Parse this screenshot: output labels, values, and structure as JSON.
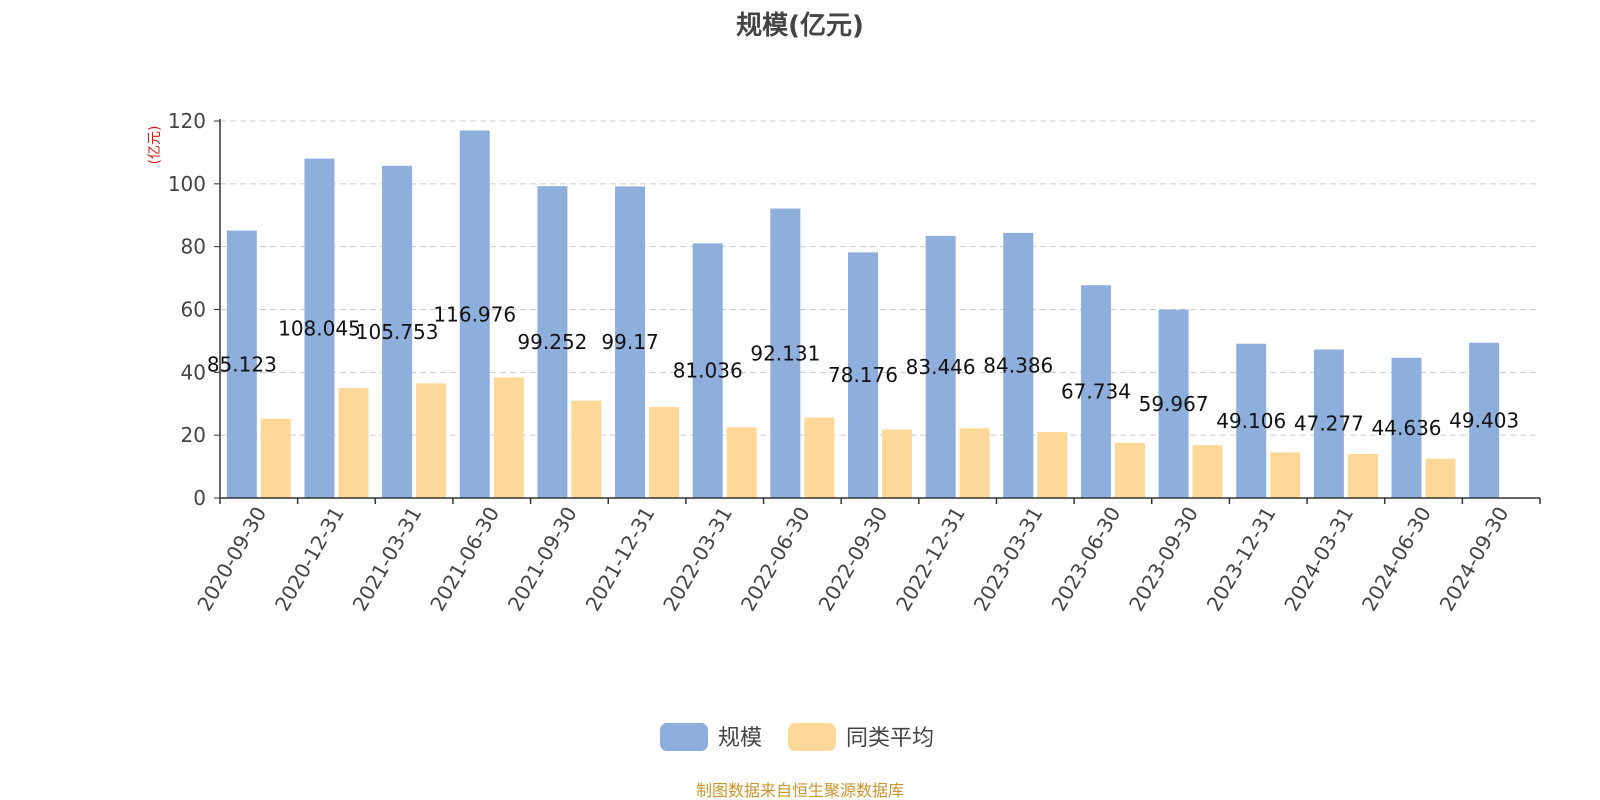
{
  "chart_data": {
    "type": "bar",
    "title": "规模(亿元)",
    "ylabel": "(亿元)",
    "ylim": [
      0,
      120
    ],
    "yticks": [
      0,
      20,
      40,
      60,
      80,
      100,
      120
    ],
    "grid": true,
    "legend_position": "bottom",
    "categories": [
      "2020-09-30",
      "2020-12-31",
      "2021-03-31",
      "2021-06-30",
      "2021-09-30",
      "2021-12-31",
      "2022-03-31",
      "2022-06-30",
      "2022-09-30",
      "2022-12-31",
      "2023-03-31",
      "2023-06-30",
      "2023-09-30",
      "2023-12-31",
      "2024-03-31",
      "2024-06-30",
      "2024-09-30"
    ],
    "series": [
      {
        "name": "规模",
        "color": "#8eaedc",
        "values": [
          85.123,
          108.045,
          105.753,
          116.976,
          99.252,
          99.17,
          81.036,
          92.131,
          78.176,
          83.446,
          84.386,
          67.734,
          59.967,
          49.106,
          47.277,
          44.636,
          49.403
        ],
        "labels": [
          "85.123",
          "108.045",
          "105.753",
          "116.976",
          "99.252",
          "99.17",
          "81.036",
          "92.131",
          "78.176",
          "83.446",
          "84.386",
          "67.734",
          "59.967",
          "49.106",
          "47.277",
          "44.636",
          "49.403"
        ]
      },
      {
        "name": "同类平均",
        "color": "#fdd898",
        "values": [
          25.2,
          35.0,
          36.5,
          38.4,
          31.0,
          29.0,
          22.5,
          25.6,
          21.8,
          22.2,
          21.0,
          17.5,
          16.8,
          14.5,
          14.0,
          12.5,
          null
        ]
      }
    ]
  },
  "source_note": "制图数据来自恒生聚源数据库",
  "colors": {
    "unit_label": "#e0191a",
    "source_note": "#c8962f",
    "axis": "#333333",
    "grid": "#cccccc"
  }
}
